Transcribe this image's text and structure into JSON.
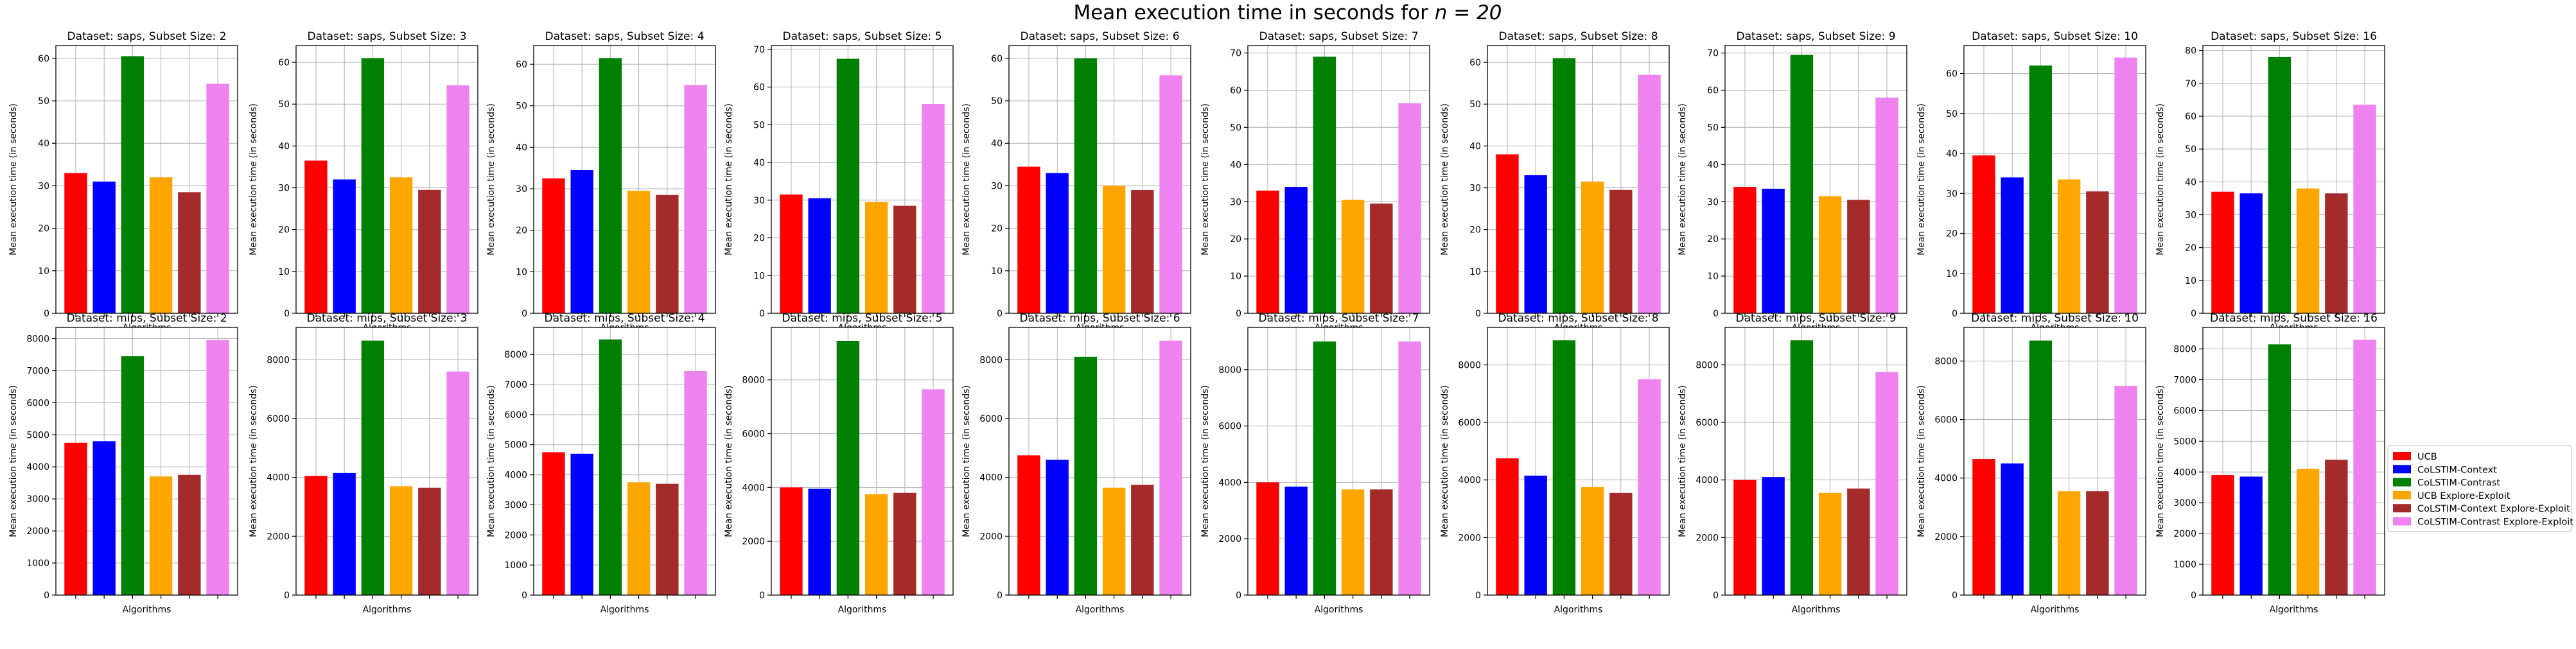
{
  "figure": {
    "suptitle": "Mean execution time in seconds for n = 20",
    "suptitle_prefix": "Mean execution time in seconds for ",
    "suptitle_math": "n = 20"
  },
  "legend": {
    "placement": "right-center",
    "entries": [
      {
        "name": "UCB",
        "color": "#ff0000"
      },
      {
        "name": "CoLSTIM-Context",
        "color": "#0000ff"
      },
      {
        "name": "CoLSTIM-Contrast",
        "color": "#008000"
      },
      {
        "name": "UCB Explore-Exploit",
        "color": "#ffa500"
      },
      {
        "name": "CoLSTIM-Context Explore-Exploit",
        "color": "#a52a2a"
      },
      {
        "name": "CoLSTIM-Contrast Explore-Exploit",
        "color": "#ee82ee"
      }
    ]
  },
  "chart_data": [
    {
      "type": "bar",
      "title": "Dataset: saps, Subset Size: 2",
      "xlabel": "Algorithms",
      "ylabel": "Mean execution time (in seconds)",
      "ylim": [
        0,
        63
      ],
      "yticks": [
        0,
        10,
        20,
        30,
        40,
        50,
        60
      ],
      "grid": true,
      "values": [
        33.0,
        31.0,
        60.5,
        32.0,
        28.5,
        54.0
      ]
    },
    {
      "type": "bar",
      "title": "Dataset: saps, Subset Size: 3",
      "xlabel": "Algorithms",
      "ylabel": "Mean execution time (in seconds)",
      "ylim": [
        0,
        64
      ],
      "yticks": [
        0,
        10,
        20,
        30,
        40,
        50,
        60
      ],
      "grid": true,
      "values": [
        36.5,
        32.0,
        61.0,
        32.5,
        29.5,
        54.5
      ]
    },
    {
      "type": "bar",
      "title": "Dataset: saps, Subset Size: 4",
      "xlabel": "Algorithms",
      "ylabel": "Mean execution time (in seconds)",
      "ylim": [
        0,
        64.5
      ],
      "yticks": [
        0,
        10,
        20,
        30,
        40,
        50,
        60
      ],
      "grid": true,
      "values": [
        32.5,
        34.5,
        61.5,
        29.5,
        28.5,
        55.0
      ]
    },
    {
      "type": "bar",
      "title": "Dataset: saps, Subset Size: 5",
      "xlabel": "Algorithms",
      "ylabel": "Mean execution time (in seconds)",
      "ylim": [
        0,
        71
      ],
      "yticks": [
        0,
        10,
        20,
        30,
        40,
        50,
        60,
        70
      ],
      "grid": true,
      "values": [
        31.5,
        30.5,
        67.5,
        29.5,
        28.5,
        55.5
      ]
    },
    {
      "type": "bar",
      "title": "Dataset: saps, Subset Size: 6",
      "xlabel": "Algorithms",
      "ylabel": "Mean execution time (in seconds)",
      "ylim": [
        0,
        63
      ],
      "yticks": [
        0,
        10,
        20,
        30,
        40,
        50,
        60
      ],
      "grid": true,
      "values": [
        34.5,
        33.0,
        60.0,
        30.0,
        29.0,
        56.0
      ]
    },
    {
      "type": "bar",
      "title": "Dataset: saps, Subset Size: 7",
      "xlabel": "Algorithms",
      "ylabel": "Mean execution time (in seconds)",
      "ylim": [
        0,
        72
      ],
      "yticks": [
        0,
        10,
        20,
        30,
        40,
        50,
        60,
        70
      ],
      "grid": true,
      "values": [
        33.0,
        34.0,
        69.0,
        30.5,
        29.5,
        56.5
      ]
    },
    {
      "type": "bar",
      "title": "Dataset: saps, Subset Size: 8",
      "xlabel": "Algorithms",
      "ylabel": "Mean execution time (in seconds)",
      "ylim": [
        0,
        64
      ],
      "yticks": [
        0,
        10,
        20,
        30,
        40,
        50,
        60
      ],
      "grid": true,
      "values": [
        38.0,
        33.0,
        61.0,
        31.5,
        29.5,
        57.0
      ]
    },
    {
      "type": "bar",
      "title": "Dataset: saps, Subset Size: 9",
      "xlabel": "Algorithms",
      "ylabel": "Mean execution time (in seconds)",
      "ylim": [
        0,
        72
      ],
      "yticks": [
        0,
        10,
        20,
        30,
        40,
        50,
        60,
        70
      ],
      "grid": true,
      "values": [
        34.0,
        33.5,
        69.5,
        31.5,
        30.5,
        58.0
      ]
    },
    {
      "type": "bar",
      "title": "Dataset: saps, Subset Size: 10",
      "xlabel": "Algorithms",
      "ylabel": "Mean execution time (in seconds)",
      "ylim": [
        0,
        67
      ],
      "yticks": [
        0,
        10,
        20,
        30,
        40,
        50,
        60
      ],
      "grid": true,
      "values": [
        39.5,
        34.0,
        62.0,
        33.5,
        30.5,
        64.0
      ]
    },
    {
      "type": "bar",
      "title": "Dataset: saps, Subset Size: 16",
      "xlabel": "Algorithms",
      "ylabel": "Mean execution time (in seconds)",
      "ylim": [
        0,
        81.5
      ],
      "yticks": [
        0,
        10,
        20,
        30,
        40,
        50,
        60,
        70,
        80
      ],
      "grid": true,
      "values": [
        37.0,
        36.5,
        78.0,
        38.0,
        36.5,
        63.5
      ]
    },
    {
      "type": "bar",
      "title": "Dataset: mips, Subset Size: 2",
      "xlabel": "Algorithms",
      "ylabel": "Mean execution time (in seconds)",
      "ylim": [
        0,
        8350
      ],
      "yticks": [
        0,
        1000,
        2000,
        3000,
        4000,
        5000,
        6000,
        7000,
        8000
      ],
      "grid": true,
      "values": [
        4750,
        4800,
        7450,
        3700,
        3750,
        7950
      ]
    },
    {
      "type": "bar",
      "title": "Dataset: mips, Subset Size: 3",
      "xlabel": "Algorithms",
      "ylabel": "Mean execution time (in seconds)",
      "ylim": [
        0,
        9100
      ],
      "yticks": [
        0,
        2000,
        4000,
        6000,
        8000
      ],
      "grid": true,
      "values": [
        4050,
        4150,
        8650,
        3700,
        3650,
        7600
      ]
    },
    {
      "type": "bar",
      "title": "Dataset: mips, Subset Size: 4",
      "xlabel": "Algorithms",
      "ylabel": "Mean execution time (in seconds)",
      "ylim": [
        0,
        8900
      ],
      "yticks": [
        0,
        1000,
        2000,
        3000,
        4000,
        5000,
        6000,
        7000,
        8000
      ],
      "grid": true,
      "values": [
        4750,
        4700,
        8500,
        3750,
        3700,
        7450
      ]
    },
    {
      "type": "bar",
      "title": "Dataset: mips, Subset Size: 5",
      "xlabel": "Algorithms",
      "ylabel": "Mean execution time (in seconds)",
      "ylim": [
        0,
        9950
      ],
      "yticks": [
        0,
        2000,
        4000,
        6000,
        8000
      ],
      "grid": true,
      "values": [
        4000,
        3950,
        9450,
        3750,
        3800,
        7650
      ]
    },
    {
      "type": "bar",
      "title": "Dataset: mips, Subset Size: 6",
      "xlabel": "Algorithms",
      "ylabel": "Mean execution time (in seconds)",
      "ylim": [
        0,
        9100
      ],
      "yticks": [
        0,
        2000,
        4000,
        6000,
        8000
      ],
      "grid": true,
      "values": [
        4750,
        4600,
        8100,
        3650,
        3750,
        8650
      ]
    },
    {
      "type": "bar",
      "title": "Dataset: mips, Subset Size: 7",
      "xlabel": "Algorithms",
      "ylabel": "Mean execution time (in seconds)",
      "ylim": [
        0,
        9500
      ],
      "yticks": [
        0,
        2000,
        4000,
        6000,
        8000
      ],
      "grid": true,
      "values": [
        4000,
        3850,
        9000,
        3750,
        3750,
        9000
      ]
    },
    {
      "type": "bar",
      "title": "Dataset: mips, Subset Size: 8",
      "xlabel": "Algorithms",
      "ylabel": "Mean execution time (in seconds)",
      "ylim": [
        0,
        9300
      ],
      "yticks": [
        0,
        2000,
        4000,
        6000,
        8000
      ],
      "grid": true,
      "values": [
        4750,
        4150,
        8850,
        3750,
        3550,
        7500
      ]
    },
    {
      "type": "bar",
      "title": "Dataset: mips, Subset Size: 9",
      "xlabel": "Algorithms",
      "ylabel": "Mean execution time (in seconds)",
      "ylim": [
        0,
        9300
      ],
      "yticks": [
        0,
        2000,
        4000,
        6000,
        8000
      ],
      "grid": true,
      "values": [
        4000,
        4100,
        8850,
        3550,
        3700,
        7750
      ]
    },
    {
      "type": "bar",
      "title": "Dataset: mips, Subset Size: 10",
      "xlabel": "Algorithms",
      "ylabel": "Mean execution time (in seconds)",
      "ylim": [
        0,
        9150
      ],
      "yticks": [
        0,
        2000,
        4000,
        6000,
        8000
      ],
      "grid": true,
      "values": [
        4650,
        4500,
        8700,
        3550,
        3550,
        7150
      ]
    },
    {
      "type": "bar",
      "title": "Dataset: mips, Subset Size: 16",
      "xlabel": "Algorithms",
      "ylabel": "Mean execution time (in seconds)",
      "ylim": [
        0,
        8700
      ],
      "yticks": [
        0,
        1000,
        2000,
        3000,
        4000,
        5000,
        6000,
        7000,
        8000
      ],
      "grid": true,
      "values": [
        3900,
        3850,
        8150,
        4100,
        4400,
        8300
      ]
    }
  ]
}
